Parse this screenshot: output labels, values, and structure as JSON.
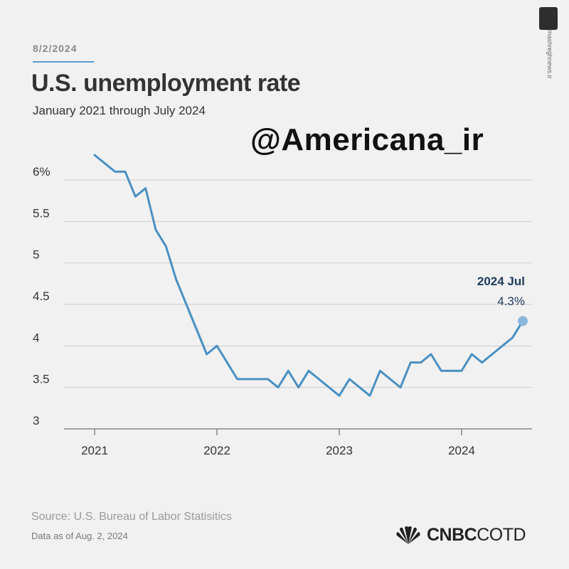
{
  "header": {
    "date": "8/2/2024",
    "title": "U.S. unemployment rate",
    "subtitle": "January 2021 through July 2024"
  },
  "watermark": "@Americana_ir",
  "side_logo": {
    "icon": "mashregh-logo-icon",
    "url": "mashreghnews.ir"
  },
  "footer": {
    "source": "Source: U.S. Bureau of Labor Statisitics",
    "as_of": "Data as of Aug. 2, 2024",
    "brand_logo": "nbc-peacock-icon",
    "brand_bold": "CNBC",
    "brand_light": "COTD"
  },
  "colors": {
    "line": "#4a90c2",
    "grid": "#cccccc",
    "background": "#f1f1f1",
    "annotation": "#1f3a5f"
  },
  "chart_data": {
    "type": "line",
    "title": "U.S. unemployment rate",
    "subtitle": "January 2021 through July 2024",
    "ylim": [
      3,
      6.5
    ],
    "y_ticks": [
      3,
      3.5,
      4,
      4.5,
      5,
      5.5,
      6
    ],
    "y_tick_labels": [
      "3",
      "3.5",
      "4",
      "4.5",
      "5",
      "5.5",
      "6%"
    ],
    "x_ticks": [
      "2021",
      "2022",
      "2023",
      "2024"
    ],
    "grid": "horizontal",
    "annotation": {
      "label": "2024 Jul",
      "value": "4.3%"
    },
    "series": [
      {
        "x": [
          "2021-01",
          "2021-02",
          "2021-03",
          "2021-04",
          "2021-05",
          "2021-06",
          "2021-07",
          "2021-08",
          "2021-09",
          "2021-10",
          "2021-11",
          "2021-12",
          "2022-01",
          "2022-02",
          "2022-03",
          "2022-04",
          "2022-05",
          "2022-06",
          "2022-07",
          "2022-08",
          "2022-09",
          "2022-10",
          "2022-11",
          "2022-12",
          "2023-01",
          "2023-02",
          "2023-03",
          "2023-04",
          "2023-05",
          "2023-06",
          "2023-07",
          "2023-08",
          "2023-09",
          "2023-10",
          "2023-11",
          "2023-12",
          "2024-01",
          "2024-02",
          "2024-03",
          "2024-04",
          "2024-05",
          "2024-06",
          "2024-07"
        ],
        "values": [
          6.3,
          6.2,
          6.1,
          6.1,
          5.8,
          5.9,
          5.4,
          5.2,
          4.8,
          4.5,
          4.2,
          3.9,
          4.0,
          3.8,
          3.6,
          3.6,
          3.6,
          3.6,
          3.5,
          3.7,
          3.5,
          3.7,
          3.6,
          3.5,
          3.4,
          3.6,
          3.5,
          3.4,
          3.7,
          3.6,
          3.5,
          3.8,
          3.8,
          3.9,
          3.7,
          3.7,
          3.7,
          3.9,
          3.8,
          3.9,
          4.0,
          4.1,
          4.3
        ]
      }
    ]
  }
}
